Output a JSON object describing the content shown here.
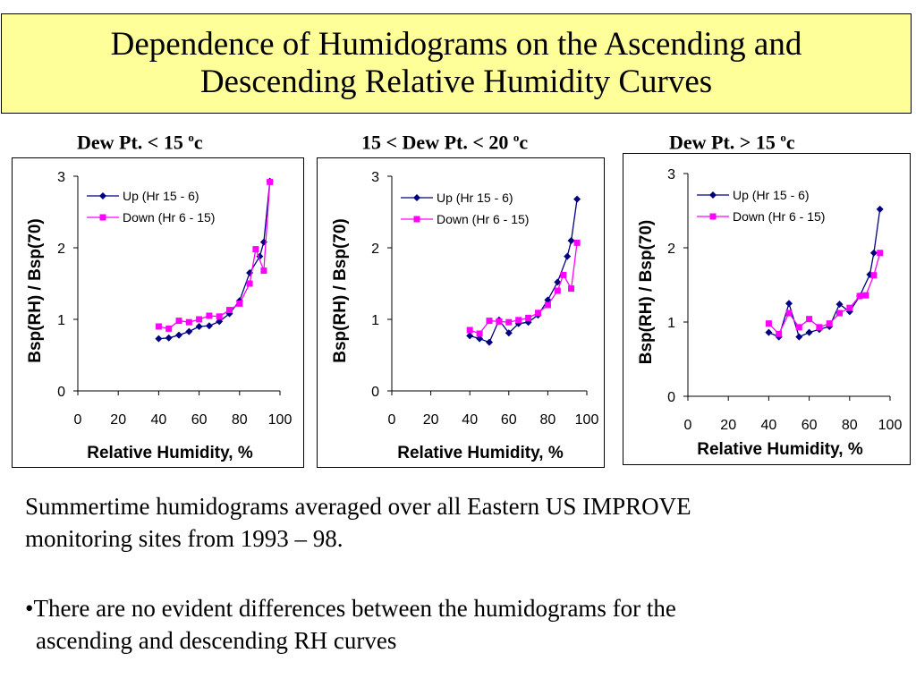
{
  "slide": {
    "title_line1": "Dependence of Humidograms on the Ascending and",
    "title_line2": "Descending Relative Humidity Curves",
    "caption_line1": "Summertime humidograms averaged over all Eastern US IMPROVE",
    "caption_line2": "monitoring sites from 1993 – 98.",
    "bullet_line1": "•There are no evident differences between the humidograms for the",
    "bullet_line2": "ascending and descending RH curves"
  },
  "panels": [
    {
      "heading_main": "Dew Pt. < 15 ",
      "heading_sup": "o",
      "heading_unit": "c"
    },
    {
      "heading_main": "15 < Dew Pt. < 20 ",
      "heading_sup": "o",
      "heading_unit": "c"
    },
    {
      "heading_main": "Dew Pt. > 15 ",
      "heading_sup": "o",
      "heading_unit": "c"
    }
  ],
  "colors": {
    "up": "#000080",
    "down": "#ff00ff",
    "title_bg": "#ffff99"
  },
  "chart_data": [
    {
      "type": "line",
      "xlabel": "Relative Humidity, %",
      "ylabel": "Bsp(RH) / Bsp(70)",
      "xlim": [
        0,
        100
      ],
      "ylim": [
        0,
        3
      ],
      "xticks": [
        0,
        20,
        40,
        60,
        80,
        100
      ],
      "yticks": [
        0,
        1,
        2,
        3
      ],
      "legend": "top-left",
      "series": [
        {
          "name": "Up (Hr 15 - 6)",
          "marker": "diamond",
          "x": [
            40,
            45,
            50,
            55,
            60,
            65,
            70,
            75,
            80,
            85,
            90,
            92,
            95
          ],
          "y": [
            0.73,
            0.74,
            0.78,
            0.83,
            0.9,
            0.91,
            0.97,
            1.08,
            1.26,
            1.65,
            1.88,
            2.08,
            2.93
          ]
        },
        {
          "name": "Down (Hr 6 - 15)",
          "marker": "square",
          "x": [
            40,
            45,
            50,
            55,
            60,
            65,
            70,
            75,
            80,
            85,
            88,
            92,
            95
          ],
          "y": [
            0.9,
            0.87,
            0.98,
            0.96,
            1.0,
            1.05,
            1.04,
            1.13,
            1.22,
            1.5,
            1.98,
            1.68,
            2.92
          ]
        }
      ]
    },
    {
      "type": "line",
      "xlabel": "Relative Humidity, %",
      "ylabel": "Bsp(RH) / Bsp(70)",
      "xlim": [
        0,
        100
      ],
      "ylim": [
        0,
        3
      ],
      "xticks": [
        0,
        20,
        40,
        60,
        80,
        100
      ],
      "yticks": [
        0,
        1,
        2,
        3
      ],
      "legend": "top-left",
      "series": [
        {
          "name": "Up (Hr 15 - 6)",
          "marker": "diamond",
          "x": [
            40,
            45,
            50,
            55,
            60,
            65,
            70,
            75,
            80,
            85,
            90,
            92,
            95
          ],
          "y": [
            0.77,
            0.73,
            0.68,
            0.99,
            0.81,
            0.94,
            0.96,
            1.06,
            1.27,
            1.52,
            1.88,
            2.1,
            2.68
          ]
        },
        {
          "name": "Down (Hr 6 - 15)",
          "marker": "square",
          "x": [
            40,
            45,
            50,
            55,
            60,
            65,
            70,
            75,
            80,
            85,
            88,
            92,
            95
          ],
          "y": [
            0.85,
            0.8,
            0.98,
            0.97,
            0.96,
            0.99,
            1.02,
            1.09,
            1.2,
            1.4,
            1.62,
            1.43,
            2.07
          ]
        }
      ]
    },
    {
      "type": "line",
      "xlabel": "Relative Humidity, %",
      "ylabel": "Bsp(RH) / Bsp(70)",
      "xlim": [
        0,
        100
      ],
      "ylim": [
        0,
        3
      ],
      "xticks": [
        0,
        20,
        40,
        60,
        80,
        100
      ],
      "yticks": [
        0,
        1,
        2,
        3
      ],
      "legend": "top-left",
      "series": [
        {
          "name": "Up (Hr 15 - 6)",
          "marker": "diamond",
          "x": [
            40,
            45,
            50,
            55,
            60,
            65,
            70,
            75,
            80,
            85,
            90,
            92,
            95
          ],
          "y": [
            0.86,
            0.8,
            1.25,
            0.8,
            0.86,
            0.9,
            0.94,
            1.24,
            1.14,
            1.35,
            1.64,
            1.93,
            2.52
          ]
        },
        {
          "name": "Down (Hr 6 - 15)",
          "marker": "square",
          "x": [
            40,
            45,
            50,
            55,
            60,
            65,
            70,
            75,
            80,
            85,
            88,
            92,
            95
          ],
          "y": [
            0.98,
            0.84,
            1.12,
            0.93,
            1.04,
            0.93,
            0.98,
            1.12,
            1.19,
            1.35,
            1.36,
            1.63,
            1.93
          ]
        }
      ]
    }
  ]
}
